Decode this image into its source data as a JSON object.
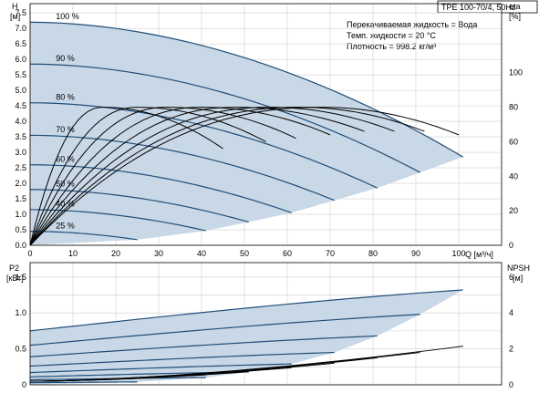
{
  "title_box": "TPE 100-70/4, 50Hz",
  "info_lines": [
    "Перекачиваемая жидкость = Вода",
    "Темп. жидкости = 20 °C",
    "Плотность = 998.2 кг/м³"
  ],
  "colors": {
    "curve": "#1f4e79",
    "area": "#c9d8e6",
    "grid": "#d0d0d0",
    "eta": "#000000"
  },
  "chart_data": [
    {
      "type": "line",
      "name": "head",
      "ylabel": "H",
      "yunit": "[м]",
      "xlabel": "Q [м³/ч]",
      "y2label": "eta",
      "y2unit": "[%]",
      "xlim": [
        0,
        110
      ],
      "ylim": [
        0,
        7.8
      ],
      "y2lim": [
        0,
        140
      ],
      "x_ticks": [
        0,
        10,
        20,
        30,
        40,
        50,
        60,
        70,
        80,
        90,
        100
      ],
      "y_ticks": [
        0.0,
        0.5,
        1.0,
        1.5,
        2.0,
        2.5,
        3.0,
        3.5,
        4.0,
        4.5,
        5.0,
        5.5,
        6.0,
        6.5,
        7.0,
        7.5
      ],
      "y_tick_labels": [
        "0.0",
        "0.5",
        "1.0",
        "1.5",
        "2.0",
        "2.5",
        "3.0",
        "3.5",
        "4.0",
        "4.5",
        "5.0",
        "5.5",
        "6.0",
        "6.5",
        "7.0",
        "7.5"
      ],
      "y2_ticks": [
        0,
        20,
        40,
        60,
        80,
        100
      ],
      "speed_labels": [
        "100 %",
        "90 %",
        "80 %",
        "70 %",
        "60 %",
        "50 %",
        "40 %",
        "25 %"
      ],
      "series": [
        {
          "speed": 100,
          "h0": 7.2,
          "qmax": 101,
          "hend": 2.85,
          "label_at": 6
        },
        {
          "speed": 90,
          "h0": 5.85,
          "qmax": 91,
          "hend": 2.35,
          "label_at": 6
        },
        {
          "speed": 80,
          "h0": 4.6,
          "qmax": 81,
          "hend": 1.85,
          "label_at": 6
        },
        {
          "speed": 70,
          "h0": 3.55,
          "qmax": 71,
          "hend": 1.45,
          "label_at": 6
        },
        {
          "speed": 60,
          "h0": 2.6,
          "qmax": 61,
          "hend": 1.05,
          "label_at": 6
        },
        {
          "speed": 50,
          "h0": 1.8,
          "qmax": 51,
          "hend": 0.75,
          "label_at": 6
        },
        {
          "speed": 40,
          "h0": 1.15,
          "qmax": 41,
          "hend": 0.47,
          "label_at": 6
        },
        {
          "speed": 25,
          "h0": 0.45,
          "qmax": 25,
          "hend": 0.18,
          "label_at": 6
        }
      ],
      "eta_curves": [
        {
          "qpeak": 17,
          "peak": 80,
          "qend": 45,
          "end": 56
        },
        {
          "qpeak": 25,
          "peak": 80,
          "qend": 55,
          "end": 60
        },
        {
          "qpeak": 32,
          "peak": 80,
          "qend": 62,
          "end": 62
        },
        {
          "qpeak": 40,
          "peak": 80,
          "qend": 70,
          "end": 64
        },
        {
          "qpeak": 48,
          "peak": 80,
          "qend": 78,
          "end": 66
        },
        {
          "qpeak": 56,
          "peak": 80,
          "qend": 85,
          "end": 66
        },
        {
          "qpeak": 63,
          "peak": 80,
          "qend": 92,
          "end": 66
        },
        {
          "qpeak": 68,
          "peak": 80,
          "qend": 100,
          "end": 64
        }
      ]
    },
    {
      "type": "line",
      "name": "power",
      "ylabel": "P2",
      "yunit": "[кВт]",
      "y2label": "NPSH",
      "y2unit": "[м]",
      "xlim": [
        0,
        110
      ],
      "ylim": [
        0,
        1.7
      ],
      "y2lim": [
        0,
        6.8
      ],
      "y_ticks": [
        0,
        0.5,
        1.0,
        1.5
      ],
      "y_tick_labels": [
        "0",
        "0.5",
        "1.0",
        "1.5"
      ],
      "y2_ticks": [
        0,
        2,
        4,
        6
      ],
      "series": [
        {
          "speed": 100,
          "p0": 0.75,
          "qmax": 101,
          "pend": 1.32
        },
        {
          "speed": 90,
          "p0": 0.55,
          "qmax": 91,
          "pend": 0.98
        },
        {
          "speed": 80,
          "p0": 0.39,
          "qmax": 81,
          "pend": 0.68
        },
        {
          "speed": 70,
          "p0": 0.26,
          "qmax": 71,
          "pend": 0.45
        },
        {
          "speed": 60,
          "p0": 0.17,
          "qmax": 61,
          "pend": 0.29
        },
        {
          "speed": 50,
          "p0": 0.11,
          "qmax": 51,
          "pend": 0.18
        },
        {
          "speed": 40,
          "p0": 0.07,
          "qmax": 41,
          "pend": 0.1
        },
        {
          "speed": 25,
          "p0": 0.03,
          "qmax": 25,
          "pend": 0.04
        }
      ],
      "npsh_curves": [
        {
          "qmax": 101,
          "end": 2.15
        },
        {
          "qmax": 91,
          "end": 1.8
        },
        {
          "qmax": 81,
          "end": 1.5
        },
        {
          "qmax": 71,
          "end": 1.2
        },
        {
          "qmax": 61,
          "end": 0.95
        },
        {
          "qmax": 51,
          "end": 0.72
        },
        {
          "qmax": 41,
          "end": 0.55
        },
        {
          "qmax": 25,
          "end": 0.35
        }
      ]
    }
  ]
}
